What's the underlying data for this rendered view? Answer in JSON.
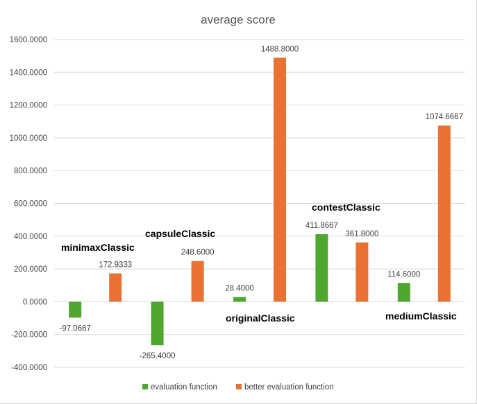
{
  "chart_data": {
    "type": "bar",
    "title": "average score",
    "xlabel": "",
    "ylabel": "",
    "ylim": [
      -400,
      1600
    ],
    "y_ticks": [
      "1600.0000",
      "1400.0000",
      "1200.0000",
      "1000.0000",
      "800.0000",
      "600.0000",
      "400.0000",
      "200.0000",
      "0.0000",
      "-200.0000",
      "-400.0000"
    ],
    "y_tick_values": [
      1600,
      1400,
      1200,
      1000,
      800,
      600,
      400,
      200,
      0,
      -200,
      -400
    ],
    "grid": true,
    "legend_position": "bottom",
    "categories": [
      "minimaxClassic",
      "capsuleClassic",
      "originalClassic",
      "contestClassic",
      "mediumClassic"
    ],
    "series": [
      {
        "name": "evaluation function",
        "color": "#4ea72e",
        "values": [
          -97.0667,
          -265.4,
          28.4,
          411.8667,
          114.6
        ],
        "labels": [
          "-97.0667",
          "-265.4000",
          "28.4000",
          "411.8667",
          "114.6000"
        ]
      },
      {
        "name": "better evaluation function",
        "color": "#e97132",
        "values": [
          172.9333,
          248.6,
          1488.8,
          361.8,
          1074.6667
        ],
        "labels": [
          "172.9333",
          "248.6000",
          "1488.8000",
          "361.8000",
          "1074.6667"
        ]
      }
    ]
  }
}
